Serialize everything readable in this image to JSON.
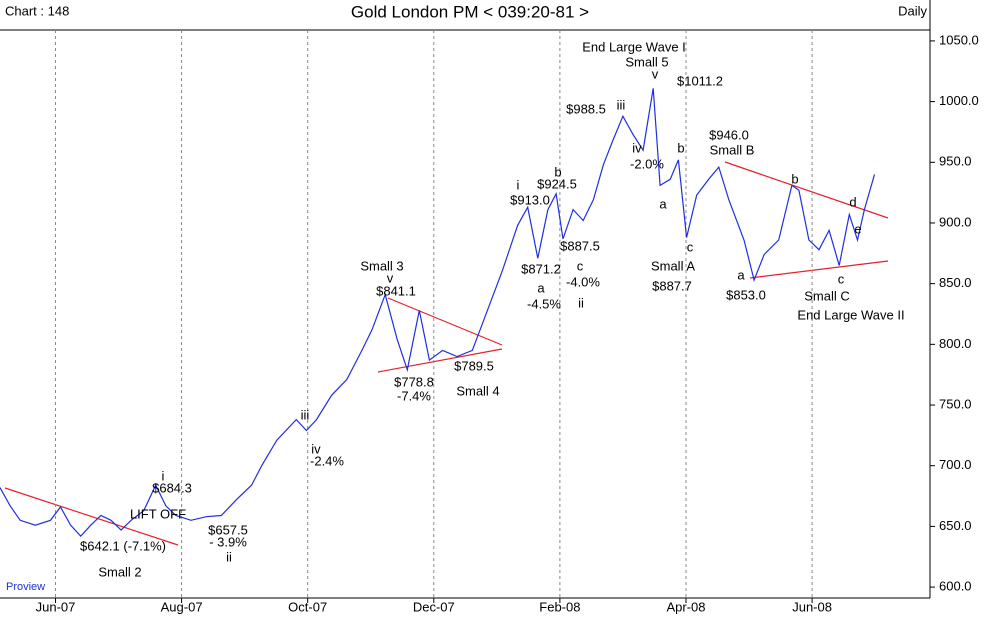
{
  "chart_data": {
    "type": "line",
    "header": "Chart : 148",
    "title": "Gold London PM < 039:20-81 >",
    "period": "Daily",
    "source": "Proview",
    "xlim": [
      -0.88,
      13.87
    ],
    "xticks": [
      {
        "value": 0,
        "label": "Jun-07"
      },
      {
        "value": 2,
        "label": "Aug-07"
      },
      {
        "value": 4,
        "label": "Oct-07"
      },
      {
        "value": 6,
        "label": "Dec-07"
      },
      {
        "value": 8,
        "label": "Feb-08"
      },
      {
        "value": 10,
        "label": "Apr-08"
      },
      {
        "value": 12,
        "label": "Jun-08"
      }
    ],
    "ylim": [
      591,
      1059
    ],
    "yticks": [
      {
        "value": 600,
        "label": "600.0"
      },
      {
        "value": 650,
        "label": "650.0"
      },
      {
        "value": 700,
        "label": "700.0"
      },
      {
        "value": 750,
        "label": "750.0"
      },
      {
        "value": 800,
        "label": "800.0"
      },
      {
        "value": 850,
        "label": "850.0"
      },
      {
        "value": 900,
        "label": "900.0"
      },
      {
        "value": 950,
        "label": "950.0"
      },
      {
        "value": 1000,
        "label": "1000.0"
      },
      {
        "value": 1050,
        "label": "1050.0"
      }
    ],
    "grid": "x",
    "series": [
      {
        "color": "#1f2fe0",
        "x": [
          -0.88,
          -0.72,
          -0.56,
          -0.32,
          -0.08,
          0.08,
          0.24,
          0.4,
          0.56,
          0.72,
          0.88,
          1.04,
          1.2,
          1.4,
          1.59,
          1.75,
          1.91,
          2.15,
          2.39,
          2.63,
          2.87,
          3.11,
          3.27,
          3.51,
          3.82,
          3.98,
          4.14,
          4.38,
          4.62,
          4.86,
          5.02,
          5.23,
          5.42,
          5.58,
          5.77,
          5.93,
          6.14,
          6.37,
          6.61,
          6.85,
          7.09,
          7.33,
          7.49,
          7.65,
          7.81,
          7.94,
          8.05,
          8.21,
          8.37,
          8.53,
          8.69,
          8.84,
          9.0,
          9.16,
          9.32,
          9.48,
          9.59,
          9.75,
          9.88,
          10.01,
          10.17,
          10.36,
          10.52,
          10.68,
          10.92,
          11.08,
          11.24,
          11.47,
          11.68,
          11.79,
          11.95,
          12.11,
          12.27,
          12.43,
          12.59,
          12.72,
          12.83,
          12.99
        ],
        "values": [
          682,
          667,
          655,
          651,
          655,
          666,
          651,
          642,
          651,
          659,
          655,
          647,
          655,
          663,
          684,
          667,
          659,
          655,
          658,
          659,
          672,
          684,
          700,
          721,
          738,
          729,
          738,
          758,
          771,
          795,
          812,
          841,
          804,
          779,
          828,
          787,
          795,
          790,
          795,
          828,
          861,
          898,
          913,
          871,
          911,
          924,
          887,
          911,
          902,
          919,
          948,
          968,
          988,
          973,
          960,
          1011,
          931,
          936,
          952,
          888,
          923,
          936,
          946,
          919,
          886,
          853,
          874,
          886,
          931,
          927,
          886,
          878,
          894,
          865,
          907,
          886,
          911,
          940
        ]
      }
    ],
    "annotations": [
      "i",
      "$684.3",
      "LIFT OFF",
      "$657.5",
      "- 3.9%",
      "ii",
      "$642.1 (-7.1%)",
      "Small 2",
      "iii",
      "iv",
      "-2.4%",
      "Small 3",
      "v",
      "$841.1",
      "$778.8",
      "-7.4%",
      "$789.5",
      "Small 4",
      "i",
      "$913.0",
      "b",
      "$924.5",
      "$887.5",
      "$871.2",
      "a",
      "-4.5%",
      "c",
      "-4.0%",
      "ii",
      "End Large Wave I",
      "Small 5",
      "v",
      "$1011.2",
      "$988.5",
      "iii",
      "iv",
      "-2.0%",
      "b",
      "a",
      "c",
      "Small A",
      "$887.7",
      "$946.0",
      "Small B",
      "b",
      "d",
      "e",
      "a",
      "$853.0",
      "c",
      "Small C",
      "End Large Wave II"
    ]
  }
}
